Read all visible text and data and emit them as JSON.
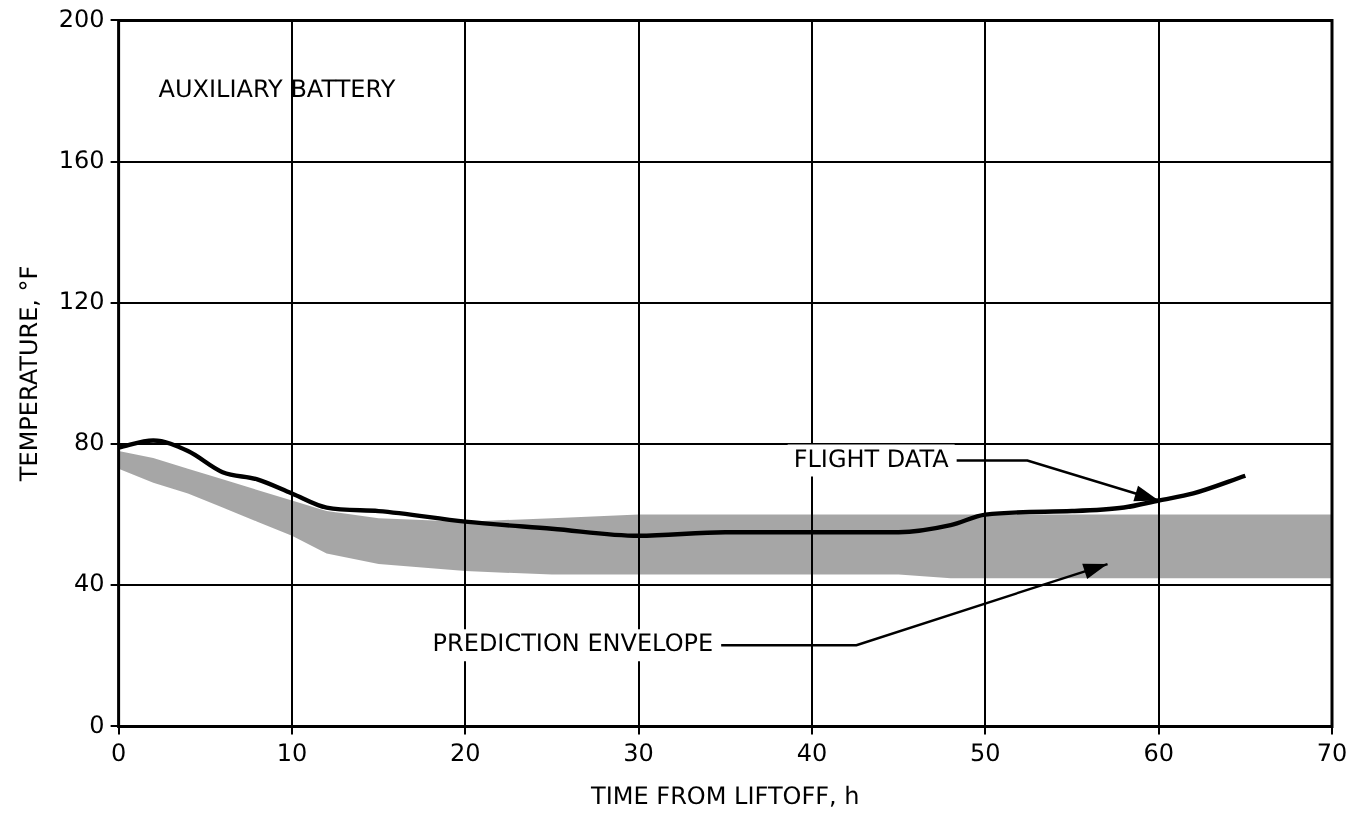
{
  "chart_data": {
    "type": "line",
    "xlabel": "TIME FROM LIFTOFF, h",
    "ylabel": "TEMPERATURE, °F",
    "xlim": [
      0,
      70
    ],
    "xticks": [
      0,
      10,
      20,
      30,
      40,
      50,
      60,
      70
    ],
    "ylim": [
      0,
      200
    ],
    "yticks": [
      0,
      40,
      80,
      120,
      160,
      200
    ],
    "grid": true,
    "legend": false,
    "marker": "none",
    "line_style": "solid",
    "series": [
      {
        "color": "#000000",
        "x": [
          0,
          2,
          4,
          6,
          8,
          10,
          12,
          15,
          20,
          25,
          30,
          35,
          40,
          45,
          48,
          50,
          55,
          58,
          60,
          62,
          65,
          70
        ],
        "values": [
          79,
          81,
          78,
          72,
          70,
          66,
          62,
          61,
          58,
          56,
          54,
          55,
          55,
          55,
          57,
          60,
          61,
          62,
          64,
          66,
          71,
          null
        ],
        "lower": [
          73,
          69,
          66,
          62,
          58,
          54,
          49,
          46,
          44,
          43,
          43,
          43,
          43,
          43,
          42,
          42,
          42,
          42,
          42,
          42,
          42,
          42
        ],
        "upper": [
          78,
          76,
          73,
          70,
          67,
          64,
          61,
          59,
          58,
          59,
          60,
          60,
          60,
          60,
          60,
          60,
          60,
          60,
          60,
          60,
          60,
          60
        ]
      }
    ],
    "annotations": [
      "AUXILIARY BATTERY",
      {
        "text": "FLIGHT DATA",
        "x": 60,
        "y": 64
      },
      "PREDICTION ENVELOPE"
    ]
  }
}
